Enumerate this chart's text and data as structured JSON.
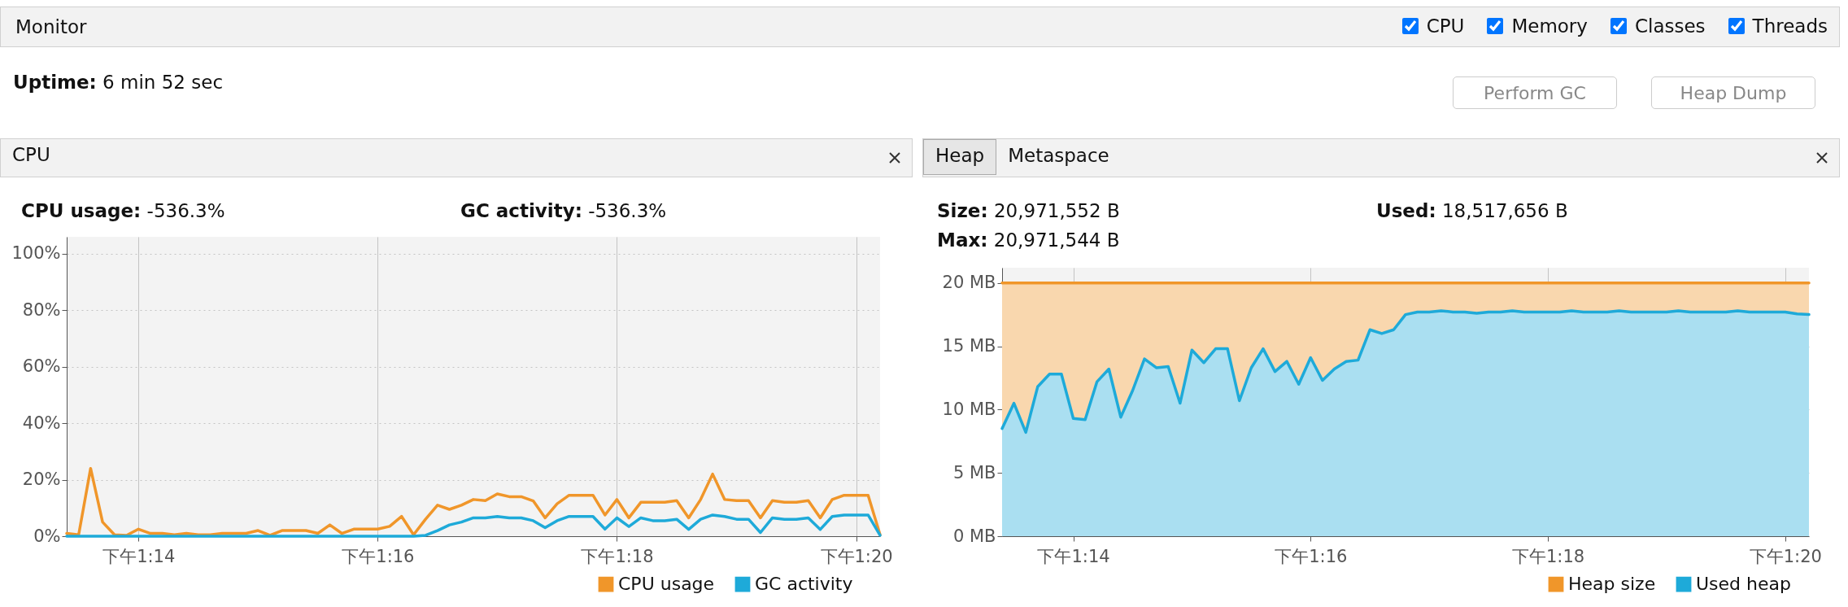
{
  "chart_data": [
    {
      "type": "other",
      "title": "Monitor",
      "annotations": [
        "CPU",
        "Memory",
        "Classes",
        "Threads",
        "Uptime: 6 min 52 sec",
        "Perform GC",
        "Heap Dump"
      ]
    },
    {
      "type": "line",
      "title": "CPU",
      "annotations": [
        "CPU usage: -536.3%",
        "GC activity: -536.3%"
      ],
      "categories": [
        null,
        null,
        null,
        null,
        null,
        null,
        "下午1:14",
        null,
        null,
        null,
        null,
        null,
        null,
        null,
        null,
        null,
        null,
        null,
        null,
        null,
        null,
        null,
        null,
        null,
        null,
        null,
        "下午1:16",
        null,
        null,
        null,
        null,
        null,
        null,
        null,
        null,
        null,
        null,
        null,
        null,
        null,
        null,
        null,
        null,
        null,
        null,
        null,
        "下午1:18",
        null,
        null,
        null,
        null,
        null,
        null,
        null,
        null,
        null,
        null,
        null,
        null,
        null,
        null,
        null,
        null,
        null,
        null,
        null,
        "下午1:20",
        null,
        null
      ],
      "series": [
        {
          "name": "CPU usage",
          "color": "#f0962a",
          "values": [
            1,
            0.5,
            24,
            5,
            0.5,
            0.3,
            2.5,
            1,
            1,
            0.5,
            1,
            0.5,
            0.5,
            1,
            1,
            1,
            2,
            0.3,
            2,
            2,
            2,
            1,
            4,
            1,
            2.5,
            2.5,
            2.5,
            3.5,
            7,
            0.5,
            6,
            11,
            9.5,
            11,
            13,
            12.6,
            15,
            14,
            14,
            12.5,
            6.5,
            11.5,
            14.5,
            14.5,
            14.5,
            7.5,
            13,
            6.5,
            12,
            12,
            12,
            12.6,
            6.5,
            13,
            22,
            13,
            12.6,
            12.6,
            6.5,
            12.6,
            12,
            12,
            12.6,
            6.5,
            13,
            14.5,
            14.5,
            14.5,
            0.5
          ]
        },
        {
          "name": "GC activity",
          "color": "#1eaad9",
          "values": [
            0,
            0,
            0,
            0,
            0,
            0,
            0,
            0,
            0,
            0,
            0,
            0,
            0,
            0,
            0,
            0,
            0,
            0,
            0,
            0,
            0,
            0,
            0,
            0,
            0,
            0,
            0,
            0,
            0,
            0,
            0.3,
            2,
            4,
            5,
            6.5,
            6.5,
            7,
            6.5,
            6.5,
            5.5,
            3,
            5.5,
            7,
            7,
            7,
            2.5,
            6.5,
            3.4,
            6.5,
            5.5,
            5.5,
            6,
            2.4,
            6,
            7.5,
            7,
            6,
            6,
            1.3,
            6.5,
            6,
            6,
            6.5,
            2.4,
            7,
            7.5,
            7.5,
            7.5,
            0.3
          ]
        }
      ],
      "ylim": [
        0,
        106
      ],
      "yticks": [
        {
          "value": 0,
          "label": "0%"
        },
        {
          "value": 20,
          "label": "20%"
        },
        {
          "value": 40,
          "label": "40%"
        },
        {
          "value": 60,
          "label": "60%"
        },
        {
          "value": 80,
          "label": "80%"
        },
        {
          "value": 100,
          "label": "100%"
        }
      ],
      "grid": true,
      "legend": "bottom right",
      "line_style": "solid"
    },
    {
      "type": "area",
      "title": "Heap",
      "subtitle": "Metaspace",
      "annotations": [
        "Size: 20,971,552 B",
        "Used: 18,517,656 B",
        "Max: 20,971,544 B"
      ],
      "categories": [
        null,
        null,
        null,
        null,
        null,
        null,
        "下午1:14",
        null,
        null,
        null,
        null,
        null,
        null,
        null,
        null,
        null,
        null,
        null,
        null,
        null,
        null,
        null,
        null,
        null,
        null,
        null,
        "下午1:16",
        null,
        null,
        null,
        null,
        null,
        null,
        null,
        null,
        null,
        null,
        null,
        null,
        null,
        null,
        null,
        null,
        null,
        null,
        null,
        "下午1:18",
        null,
        null,
        null,
        null,
        null,
        null,
        null,
        null,
        null,
        null,
        null,
        null,
        null,
        null,
        null,
        null,
        null,
        null,
        null,
        "下午1:20",
        null,
        null
      ],
      "series": [
        {
          "name": "Heap size",
          "color": "#f0962a",
          "values": [
            20,
            20,
            20,
            20,
            20,
            20,
            20,
            20,
            20,
            20,
            20,
            20,
            20,
            20,
            20,
            20,
            20,
            20,
            20,
            20,
            20,
            20,
            20,
            20,
            20,
            20,
            20,
            20,
            20,
            20,
            20,
            20,
            20,
            20,
            20,
            20,
            20,
            20,
            20,
            20,
            20,
            20,
            20,
            20,
            20,
            20,
            20,
            20,
            20,
            20,
            20,
            20,
            20,
            20,
            20,
            20,
            20,
            20,
            20,
            20,
            20,
            20,
            20,
            20,
            20,
            20,
            20,
            20,
            20
          ]
        },
        {
          "name": "Used heap",
          "color": "#1eaad9",
          "values": [
            8.5,
            10.5,
            8.2,
            11.8,
            12.8,
            12.8,
            9.3,
            9.2,
            12.2,
            13.2,
            9.4,
            11.5,
            14,
            13.3,
            13.4,
            10.5,
            14.7,
            13.7,
            14.8,
            14.8,
            10.7,
            13.3,
            14.8,
            13,
            13.8,
            12,
            14.1,
            12.3,
            13.2,
            13.8,
            13.9,
            16.3,
            16,
            16.3,
            17.5,
            17.7,
            17.7,
            17.8,
            17.7,
            17.7,
            17.6,
            17.7,
            17.7,
            17.8,
            17.7,
            17.7,
            17.7,
            17.7,
            17.8,
            17.7,
            17.7,
            17.7,
            17.8,
            17.7,
            17.7,
            17.7,
            17.7,
            17.8,
            17.7,
            17.7,
            17.7,
            17.7,
            17.8,
            17.7,
            17.7,
            17.7,
            17.7,
            17.55,
            17.5
          ]
        }
      ],
      "ylim": [
        0,
        21.2
      ],
      "yticks": [
        {
          "value": 0,
          "label": "0 MB"
        },
        {
          "value": 5,
          "label": "5 MB"
        },
        {
          "value": 10,
          "label": "10 MB"
        },
        {
          "value": 15,
          "label": "15 MB"
        },
        {
          "value": 20,
          "label": "20 MB"
        }
      ],
      "grid": true,
      "legend": "bottom right",
      "line_style": "solid"
    }
  ]
}
